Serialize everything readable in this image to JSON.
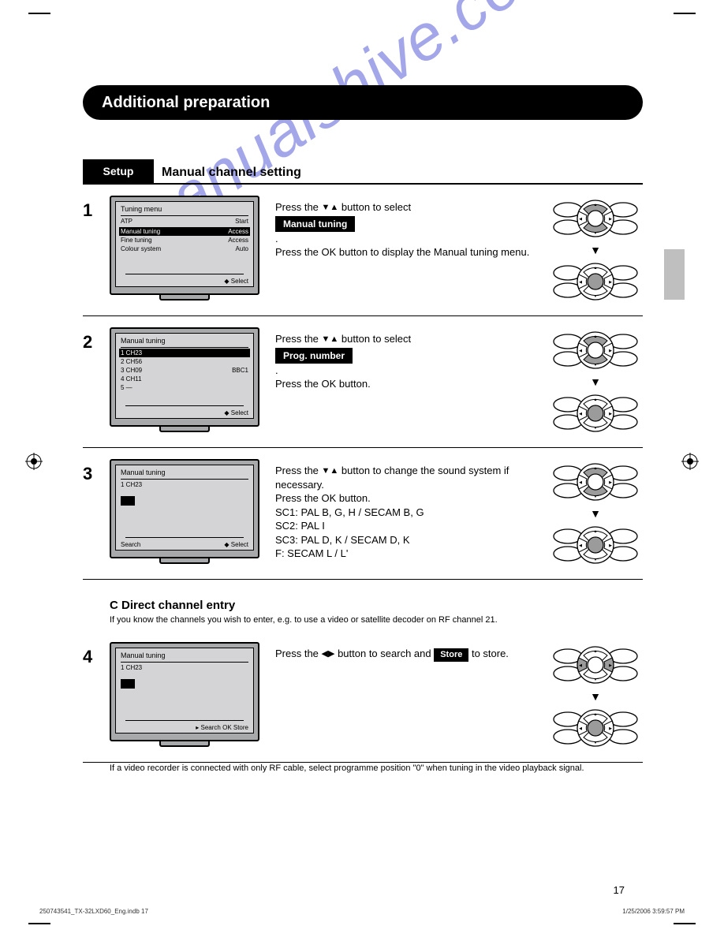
{
  "page": {
    "title_bar": "Additional preparation",
    "section_tab": "Setup",
    "section_label": "Manual channel setting",
    "page_number": "17",
    "footer_file": "250743541_TX-32LXD60_Eng.indb   17",
    "footer_date": "1/25/2006   3:59:57 PM",
    "watermark": "manualshive.com"
  },
  "steps": [
    {
      "num": "1",
      "tv": {
        "title": "Tuning menu",
        "rows": [
          {
            "l": "ATP",
            "r": "Start",
            "sel": false
          },
          {
            "l": "",
            "r": "",
            "sel": false
          },
          {
            "l": "Manual tuning",
            "r": "Access",
            "sel": true
          },
          {
            "l": "Fine tuning",
            "r": "Access",
            "sel": false
          },
          {
            "l": "Colour system",
            "r": "Auto",
            "sel": false
          }
        ],
        "hint": "◆ Select"
      },
      "text_pre": "Press the ",
      "arrows": "▼▲",
      "text_mid": " button to select",
      "btn": "Manual tuning",
      "text_post": ".\nPress the OK button to display the Manual tuning menu.",
      "remote": {
        "top_highlight": "updown",
        "bottom_highlight": "center"
      }
    },
    {
      "num": "2",
      "tv": {
        "title": "Manual tuning",
        "rows": [
          {
            "l": "1 CH23",
            "r": "",
            "sel": true
          },
          {
            "l": "2 CH56",
            "r": "",
            "sel": false
          },
          {
            "l": "3 CH09",
            "r": "BBC1",
            "sel": false
          },
          {
            "l": "4 CH11",
            "r": "",
            "sel": false
          },
          {
            "l": "5 —",
            "r": "",
            "sel": false
          }
        ],
        "hint": "◆ Select"
      },
      "text_pre": "Press the ",
      "arrows": "▼▲",
      "text_mid": " button to select",
      "btn": "Prog. number",
      "text_post": ".\nPress the OK button.",
      "remote": {
        "top_highlight": "updown",
        "bottom_highlight": "center"
      }
    },
    {
      "num": "3",
      "tv": {
        "title": "Manual tuning",
        "rows": [
          {
            "l": "1   CH23",
            "r": "",
            "sel": false
          }
        ],
        "hint": "◆ Select",
        "hint_left": "Search",
        "small": true
      },
      "text_pre": "Press the ",
      "arrows": "▼▲",
      "text_mid": " button to change the sound system if necessary.\nPress the OK button.\nSC1: PAL B, G, H / SECAM B, G\nSC2: PAL I\nSC3: PAL D, K / SECAM D, K\nF:    SECAM L / L'",
      "btn": "",
      "text_post": "",
      "remote": {
        "top_highlight": "updown",
        "bottom_highlight": "center"
      }
    }
  ],
  "step4": {
    "num": "4",
    "tv": {
      "title": "Manual tuning",
      "rows": [
        {
          "l": "1   CH23",
          "r": "",
          "sel": false
        }
      ],
      "hint": "▸ Search  OK Store",
      "small": true
    },
    "text_pre": "Press the ",
    "arrows": "◀▶",
    "text_mid": " button to search and ",
    "btn": "Store",
    "text_post": " to store.",
    "remote": {
      "top_highlight": "leftright",
      "bottom_highlight": "center"
    }
  },
  "sub_c": {
    "heading": "C  Direct channel entry",
    "desc": "If you know the channels you wish to enter, e.g. to use a video or satellite decoder on RF channel 21."
  },
  "foot_note": "If a video recorder is connected with only RF cable, select programme position \"0\" when tuning in the video playback signal."
}
